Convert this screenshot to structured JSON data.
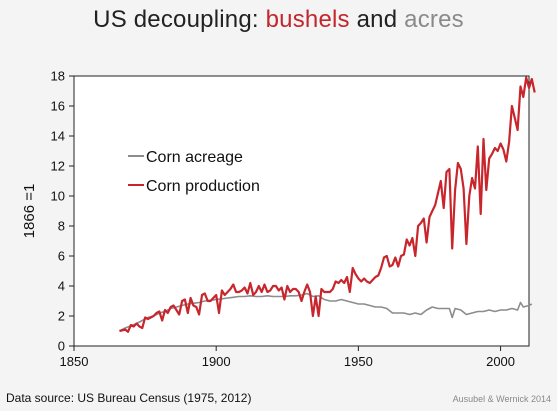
{
  "title": {
    "part1": "US decoupling:",
    "part2": "bushels",
    "part3": "and",
    "part4": "acres"
  },
  "colors": {
    "production": "#c8262c",
    "acreage": "#8c8c8c",
    "title_red": "#c1272d",
    "title_gray": "#8a8a8a"
  },
  "footer": {
    "source": "Data source: US Bureau Census (1975, 2012)",
    "credit": "Ausubel & Wernick 2014"
  },
  "chart_data": {
    "type": "line",
    "title": "US decoupling: bushels and acres",
    "xlabel": "",
    "ylabel": "1866 =1",
    "xlim": [
      1850,
      2010
    ],
    "ylim": [
      0,
      18
    ],
    "xticks": [
      1850,
      1900,
      1950,
      2000
    ],
    "yticks": [
      0,
      2,
      4,
      6,
      8,
      10,
      12,
      14,
      16,
      18
    ],
    "grid": false,
    "legend_position": "middle-left",
    "series": [
      {
        "name": "Corn acreage",
        "color": "#8c8c8c",
        "points": [
          [
            1866,
            1.0
          ],
          [
            1868,
            1.2
          ],
          [
            1870,
            1.35
          ],
          [
            1872,
            1.5
          ],
          [
            1874,
            1.7
          ],
          [
            1876,
            1.9
          ],
          [
            1878,
            2.0
          ],
          [
            1880,
            2.2
          ],
          [
            1882,
            2.3
          ],
          [
            1884,
            2.5
          ],
          [
            1886,
            2.6
          ],
          [
            1888,
            2.7
          ],
          [
            1890,
            2.8
          ],
          [
            1892,
            2.85
          ],
          [
            1894,
            2.9
          ],
          [
            1896,
            3.0
          ],
          [
            1898,
            3.05
          ],
          [
            1900,
            3.1
          ],
          [
            1902,
            3.15
          ],
          [
            1904,
            3.2
          ],
          [
            1906,
            3.25
          ],
          [
            1908,
            3.3
          ],
          [
            1910,
            3.3
          ],
          [
            1912,
            3.35
          ],
          [
            1914,
            3.3
          ],
          [
            1916,
            3.3
          ],
          [
            1918,
            3.35
          ],
          [
            1920,
            3.3
          ],
          [
            1922,
            3.3
          ],
          [
            1924,
            3.3
          ],
          [
            1926,
            3.35
          ],
          [
            1928,
            3.35
          ],
          [
            1930,
            3.4
          ],
          [
            1932,
            3.5
          ],
          [
            1934,
            3.3
          ],
          [
            1936,
            3.35
          ],
          [
            1938,
            3.1
          ],
          [
            1940,
            3.0
          ],
          [
            1942,
            3.0
          ],
          [
            1944,
            3.1
          ],
          [
            1946,
            3.0
          ],
          [
            1948,
            2.9
          ],
          [
            1950,
            2.8
          ],
          [
            1952,
            2.8
          ],
          [
            1954,
            2.7
          ],
          [
            1956,
            2.6
          ],
          [
            1958,
            2.6
          ],
          [
            1960,
            2.5
          ],
          [
            1962,
            2.2
          ],
          [
            1964,
            2.2
          ],
          [
            1966,
            2.2
          ],
          [
            1968,
            2.1
          ],
          [
            1970,
            2.2
          ],
          [
            1972,
            2.1
          ],
          [
            1974,
            2.4
          ],
          [
            1976,
            2.6
          ],
          [
            1978,
            2.5
          ],
          [
            1980,
            2.5
          ],
          [
            1982,
            2.5
          ],
          [
            1983,
            1.9
          ],
          [
            1984,
            2.5
          ],
          [
            1986,
            2.4
          ],
          [
            1988,
            2.1
          ],
          [
            1990,
            2.2
          ],
          [
            1992,
            2.3
          ],
          [
            1994,
            2.3
          ],
          [
            1996,
            2.4
          ],
          [
            1998,
            2.3
          ],
          [
            2000,
            2.4
          ],
          [
            2002,
            2.4
          ],
          [
            2004,
            2.5
          ],
          [
            2006,
            2.4
          ],
          [
            2007,
            2.9
          ],
          [
            2008,
            2.6
          ],
          [
            2010,
            2.7
          ],
          [
            2011,
            2.8
          ]
        ]
      },
      {
        "name": "Corn production",
        "color": "#c8262c",
        "points": [
          [
            1866,
            1.0
          ],
          [
            1868,
            1.1
          ],
          [
            1869,
            0.95
          ],
          [
            1870,
            1.4
          ],
          [
            1871,
            1.3
          ],
          [
            1872,
            1.5
          ],
          [
            1873,
            1.3
          ],
          [
            1874,
            1.2
          ],
          [
            1875,
            1.9
          ],
          [
            1876,
            1.8
          ],
          [
            1877,
            1.9
          ],
          [
            1878,
            2.0
          ],
          [
            1879,
            2.2
          ],
          [
            1880,
            2.3
          ],
          [
            1881,
            1.7
          ],
          [
            1882,
            2.4
          ],
          [
            1883,
            2.2
          ],
          [
            1884,
            2.6
          ],
          [
            1885,
            2.7
          ],
          [
            1886,
            2.4
          ],
          [
            1887,
            2.1
          ],
          [
            1888,
            3.0
          ],
          [
            1889,
            3.1
          ],
          [
            1890,
            2.2
          ],
          [
            1891,
            3.2
          ],
          [
            1892,
            2.7
          ],
          [
            1893,
            2.6
          ],
          [
            1894,
            2.1
          ],
          [
            1895,
            3.4
          ],
          [
            1896,
            3.5
          ],
          [
            1897,
            3.0
          ],
          [
            1898,
            3.0
          ],
          [
            1899,
            3.2
          ],
          [
            1900,
            3.4
          ],
          [
            1901,
            2.2
          ],
          [
            1902,
            3.7
          ],
          [
            1903,
            3.4
          ],
          [
            1904,
            3.6
          ],
          [
            1905,
            3.8
          ],
          [
            1906,
            4.1
          ],
          [
            1907,
            3.6
          ],
          [
            1908,
            3.6
          ],
          [
            1909,
            3.7
          ],
          [
            1910,
            3.9
          ],
          [
            1911,
            3.5
          ],
          [
            1912,
            4.2
          ],
          [
            1913,
            3.4
          ],
          [
            1914,
            3.6
          ],
          [
            1915,
            4.0
          ],
          [
            1916,
            3.6
          ],
          [
            1917,
            4.1
          ],
          [
            1918,
            3.6
          ],
          [
            1919,
            3.7
          ],
          [
            1920,
            4.0
          ],
          [
            1921,
            4.0
          ],
          [
            1922,
            3.7
          ],
          [
            1923,
            3.9
          ],
          [
            1924,
            3.1
          ],
          [
            1925,
            4.0
          ],
          [
            1926,
            3.6
          ],
          [
            1927,
            3.8
          ],
          [
            1928,
            3.8
          ],
          [
            1929,
            3.6
          ],
          [
            1930,
            3.0
          ],
          [
            1931,
            3.6
          ],
          [
            1932,
            4.1
          ],
          [
            1933,
            3.6
          ],
          [
            1934,
            2.0
          ],
          [
            1935,
            3.3
          ],
          [
            1936,
            2.0
          ],
          [
            1937,
            3.8
          ],
          [
            1938,
            3.6
          ],
          [
            1939,
            3.6
          ],
          [
            1940,
            3.6
          ],
          [
            1941,
            3.8
          ],
          [
            1942,
            4.3
          ],
          [
            1943,
            4.2
          ],
          [
            1944,
            4.4
          ],
          [
            1945,
            4.2
          ],
          [
            1946,
            4.6
          ],
          [
            1947,
            3.6
          ],
          [
            1948,
            5.2
          ],
          [
            1949,
            4.8
          ],
          [
            1950,
            4.5
          ],
          [
            1951,
            4.3
          ],
          [
            1952,
            4.5
          ],
          [
            1953,
            4.3
          ],
          [
            1954,
            4.2
          ],
          [
            1955,
            4.4
          ],
          [
            1956,
            4.6
          ],
          [
            1957,
            4.7
          ],
          [
            1958,
            5.2
          ],
          [
            1959,
            5.9
          ],
          [
            1960,
            6.0
          ],
          [
            1961,
            5.3
          ],
          [
            1962,
            5.4
          ],
          [
            1963,
            5.9
          ],
          [
            1964,
            5.3
          ],
          [
            1965,
            6.0
          ],
          [
            1966,
            6.1
          ],
          [
            1967,
            7.1
          ],
          [
            1968,
            6.7
          ],
          [
            1969,
            7.2
          ],
          [
            1970,
            6.0
          ],
          [
            1971,
            8.0
          ],
          [
            1972,
            8.2
          ],
          [
            1973,
            8.5
          ],
          [
            1974,
            6.9
          ],
          [
            1975,
            8.6
          ],
          [
            1976,
            9.0
          ],
          [
            1977,
            9.4
          ],
          [
            1978,
            10.2
          ],
          [
            1979,
            11.0
          ],
          [
            1980,
            9.2
          ],
          [
            1981,
            11.6
          ],
          [
            1982,
            11.8
          ],
          [
            1983,
            6.5
          ],
          [
            1984,
            10.4
          ],
          [
            1985,
            12.2
          ],
          [
            1986,
            11.8
          ],
          [
            1987,
            10.5
          ],
          [
            1988,
            6.8
          ],
          [
            1989,
            10.0
          ],
          [
            1990,
            11.2
          ],
          [
            1991,
            10.5
          ],
          [
            1992,
            13.3
          ],
          [
            1993,
            8.8
          ],
          [
            1994,
            13.8
          ],
          [
            1995,
            10.4
          ],
          [
            1996,
            12.5
          ],
          [
            1997,
            12.8
          ],
          [
            1998,
            13.2
          ],
          [
            1999,
            13.0
          ],
          [
            2000,
            13.5
          ],
          [
            2001,
            13.1
          ],
          [
            2002,
            12.3
          ],
          [
            2003,
            13.6
          ],
          [
            2004,
            16.0
          ],
          [
            2005,
            15.2
          ],
          [
            2006,
            14.4
          ],
          [
            2007,
            17.3
          ],
          [
            2008,
            16.6
          ],
          [
            2009,
            17.9
          ],
          [
            2010,
            17.2
          ],
          [
            2011,
            17.8
          ],
          [
            2012,
            16.9
          ]
        ]
      }
    ]
  }
}
